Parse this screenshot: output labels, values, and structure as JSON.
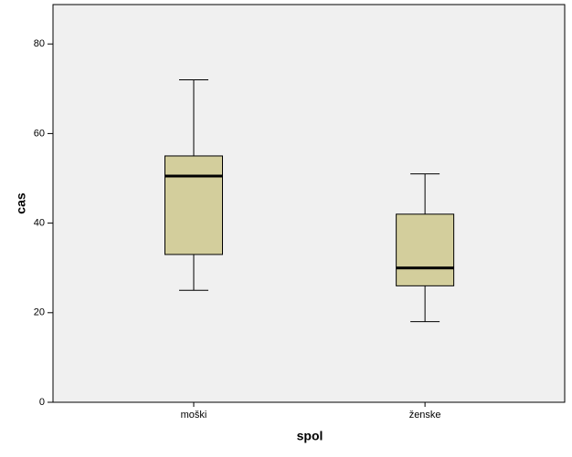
{
  "chart_data": {
    "type": "box",
    "x_label": "spol",
    "y_label": "cas",
    "categories": [
      "moški",
      "ženske"
    ],
    "boxes": [
      {
        "min": 25,
        "q1": 33,
        "median": 50.5,
        "q3": 55,
        "max": 72
      },
      {
        "min": 18,
        "q1": 26,
        "median": 30,
        "q3": 42,
        "max": 51
      }
    ],
    "color": "#d3ce9c",
    "ylim": [
      0,
      88.8
    ],
    "yticks": [
      0,
      20,
      40,
      60,
      80
    ],
    "grid": false
  }
}
